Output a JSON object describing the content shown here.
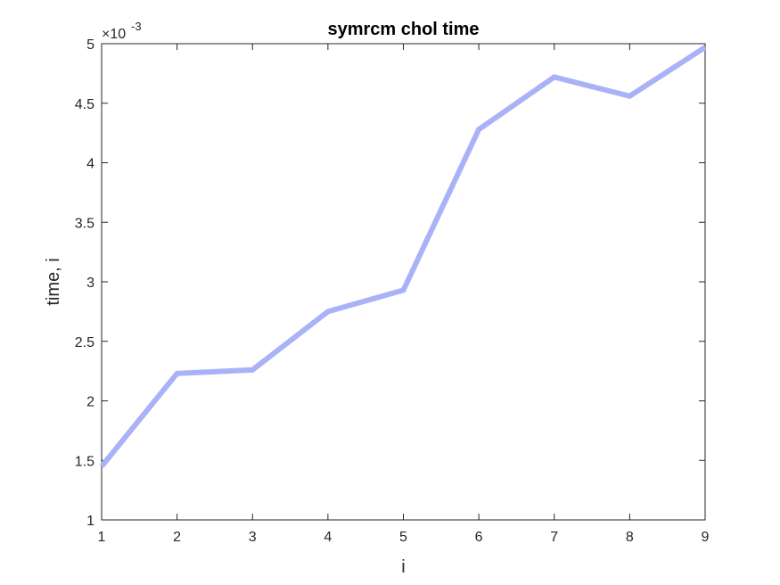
{
  "chart_data": {
    "type": "line",
    "title": "symrcm chol time",
    "xlabel": "i",
    "ylabel": "time, i",
    "y_multiplier_base": "×10",
    "y_multiplier_exp": "-3",
    "xlim": [
      1,
      9
    ],
    "ylim": [
      1,
      5
    ],
    "x_ticks": [
      1,
      2,
      3,
      4,
      5,
      6,
      7,
      8,
      9
    ],
    "y_ticks": [
      1,
      1.5,
      2,
      2.5,
      3,
      3.5,
      4,
      4.5,
      5
    ],
    "grid": false,
    "series": [
      {
        "color": "#aab2f7",
        "x": [
          1,
          2,
          3,
          4,
          5,
          6,
          7,
          8,
          9
        ],
        "y": [
          1.45,
          2.23,
          2.26,
          2.75,
          2.93,
          4.28,
          4.72,
          4.56,
          4.97
        ]
      }
    ]
  }
}
